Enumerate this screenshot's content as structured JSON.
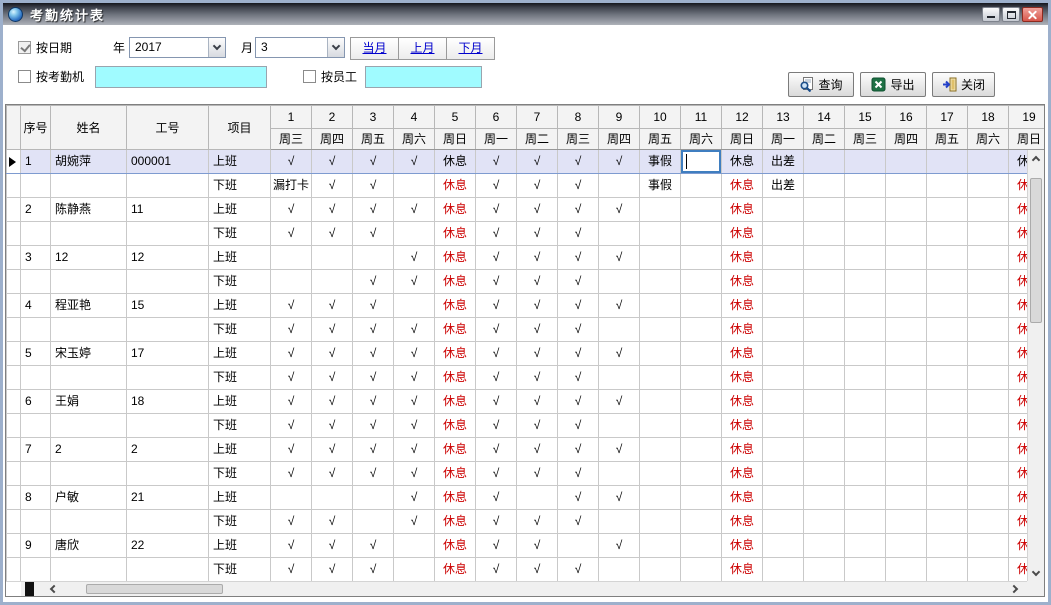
{
  "window": {
    "title": "考勤统计表"
  },
  "filters": {
    "by_date": {
      "label": "按日期",
      "checked": true
    },
    "year": {
      "label": "年",
      "value": "2017"
    },
    "month": {
      "label": "月",
      "value": "3"
    },
    "month_nav": {
      "current": "当月",
      "prev": "上月",
      "next": "下月"
    },
    "by_machine": {
      "label": "按考勤机",
      "checked": false,
      "value": ""
    },
    "by_employee": {
      "label": "按员工",
      "checked": false,
      "value": ""
    }
  },
  "toolbar": {
    "query": "查询",
    "export": "导出",
    "close": "关闭"
  },
  "grid": {
    "fixed_headers": [
      "序号",
      "姓名",
      "工号",
      "项目"
    ],
    "day_numbers": [
      "1",
      "2",
      "3",
      "4",
      "5",
      "6",
      "7",
      "8",
      "9",
      "10",
      "11",
      "12",
      "13",
      "14",
      "15",
      "16",
      "17",
      "18",
      "19"
    ],
    "weekdays": [
      "周三",
      "周四",
      "周五",
      "周六",
      "周日",
      "周一",
      "周二",
      "周三",
      "周四",
      "周五",
      "周六",
      "周日",
      "周一",
      "周二",
      "周三",
      "周四",
      "周五",
      "周六",
      "周日"
    ],
    "shift_in": "上班",
    "shift_out": "下班",
    "marks": {
      "present": "√",
      "rest": "休息",
      "personal_leave": "事假",
      "business_trip": "出差",
      "missed_punch": "漏打卡"
    },
    "rest_color": "#cc0000",
    "selected_employee_index": 0,
    "editing": {
      "employee_index": 0,
      "shift": "in",
      "day_index": 10
    },
    "employees": [
      {
        "no": "1",
        "name": "胡婉萍",
        "id": "000001",
        "in": [
          "√",
          "√",
          "√",
          "√",
          "休息",
          "√",
          "√",
          "√",
          "√",
          "事假",
          "",
          "休息",
          "出差",
          "",
          "",
          "",
          "",
          "",
          "休息"
        ],
        "out": [
          "漏打卡",
          "√",
          "√",
          "",
          "休息",
          "√",
          "√",
          "√",
          "",
          "事假",
          "",
          "休息",
          "出差",
          "",
          "",
          "",
          "",
          "",
          "休息"
        ]
      },
      {
        "no": "2",
        "name": "陈静燕",
        "id": "11",
        "in": [
          "√",
          "√",
          "√",
          "√",
          "休息",
          "√",
          "√",
          "√",
          "√",
          "",
          "",
          "休息",
          "",
          "",
          "",
          "",
          "",
          "",
          "休息"
        ],
        "out": [
          "√",
          "√",
          "√",
          "",
          "休息",
          "√",
          "√",
          "√",
          "",
          "",
          "",
          "休息",
          "",
          "",
          "",
          "",
          "",
          "",
          "休息"
        ]
      },
      {
        "no": "3",
        "name": "12",
        "id": "12",
        "in": [
          "",
          "",
          "",
          "√",
          "休息",
          "√",
          "√",
          "√",
          "√",
          "",
          "",
          "休息",
          "",
          "",
          "",
          "",
          "",
          "",
          "休息"
        ],
        "out": [
          "",
          "",
          "√",
          "√",
          "休息",
          "√",
          "√",
          "√",
          "",
          "",
          "",
          "休息",
          "",
          "",
          "",
          "",
          "",
          "",
          "休息"
        ]
      },
      {
        "no": "4",
        "name": "程亚艳",
        "id": "15",
        "in": [
          "√",
          "√",
          "√",
          "",
          "休息",
          "√",
          "√",
          "√",
          "√",
          "",
          "",
          "休息",
          "",
          "",
          "",
          "",
          "",
          "",
          "休息"
        ],
        "out": [
          "√",
          "√",
          "√",
          "√",
          "休息",
          "√",
          "√",
          "√",
          "",
          "",
          "",
          "休息",
          "",
          "",
          "",
          "",
          "",
          "",
          "休息"
        ]
      },
      {
        "no": "5",
        "name": "宋玉婷",
        "id": "17",
        "in": [
          "√",
          "√",
          "√",
          "√",
          "休息",
          "√",
          "√",
          "√",
          "√",
          "",
          "",
          "休息",
          "",
          "",
          "",
          "",
          "",
          "",
          "休息"
        ],
        "out": [
          "√",
          "√",
          "√",
          "√",
          "休息",
          "√",
          "√",
          "√",
          "",
          "",
          "",
          "休息",
          "",
          "",
          "",
          "",
          "",
          "",
          "休息"
        ]
      },
      {
        "no": "6",
        "name": "王娟",
        "id": "18",
        "in": [
          "√",
          "√",
          "√",
          "√",
          "休息",
          "√",
          "√",
          "√",
          "√",
          "",
          "",
          "休息",
          "",
          "",
          "",
          "",
          "",
          "",
          "休息"
        ],
        "out": [
          "√",
          "√",
          "√",
          "√",
          "休息",
          "√",
          "√",
          "√",
          "",
          "",
          "",
          "休息",
          "",
          "",
          "",
          "",
          "",
          "",
          "休息"
        ]
      },
      {
        "no": "7",
        "name": "2",
        "id": "2",
        "in": [
          "√",
          "√",
          "√",
          "√",
          "休息",
          "√",
          "√",
          "√",
          "√",
          "",
          "",
          "休息",
          "",
          "",
          "",
          "",
          "",
          "",
          "休息"
        ],
        "out": [
          "√",
          "√",
          "√",
          "√",
          "休息",
          "√",
          "√",
          "√",
          "",
          "",
          "",
          "休息",
          "",
          "",
          "",
          "",
          "",
          "",
          "休息"
        ]
      },
      {
        "no": "8",
        "name": "户敏",
        "id": "21",
        "in": [
          "",
          "",
          "",
          "√",
          "休息",
          "√",
          "",
          "√",
          "√",
          "",
          "",
          "休息",
          "",
          "",
          "",
          "",
          "",
          "",
          "休息"
        ],
        "out": [
          "√",
          "√",
          "",
          "√",
          "休息",
          "√",
          "√",
          "√",
          "",
          "",
          "",
          "休息",
          "",
          "",
          "",
          "",
          "",
          "",
          "休息"
        ]
      },
      {
        "no": "9",
        "name": "唐欣",
        "id": "22",
        "in": [
          "√",
          "√",
          "√",
          "",
          "休息",
          "√",
          "√",
          "",
          "√",
          "",
          "",
          "休息",
          "",
          "",
          "",
          "",
          "",
          "",
          "休息"
        ],
        "out": [
          "√",
          "√",
          "√",
          "",
          "休息",
          "√",
          "√",
          "√",
          "",
          "",
          "",
          "休息",
          "",
          "",
          "",
          "",
          "",
          "",
          "休息"
        ]
      }
    ]
  }
}
